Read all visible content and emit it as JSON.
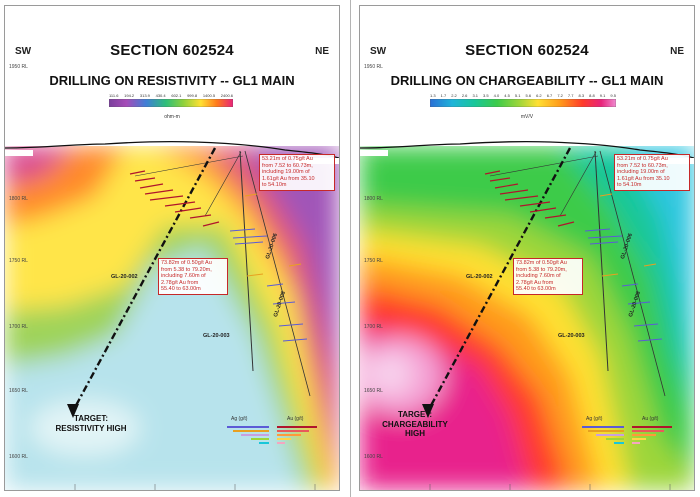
{
  "panels": [
    {
      "section": "SECTION 602524",
      "subtitle": "DRILLING ON RESISTIVITY -- GL1 MAIN",
      "left_dir": "SW",
      "right_dir": "NE",
      "rl_top": "1950 RL",
      "colorbar": {
        "unit": "ohm-m",
        "ticks": [
          "111.6",
          "194.2",
          "313.9",
          "430.4",
          "602.1",
          "999.8",
          "1400.5",
          "2400.6"
        ],
        "colors": [
          "#7b3f9c",
          "#a64cb8",
          "#3f7fd6",
          "#2fbf7a",
          "#8fd13c",
          "#ffe033",
          "#ff7a1a",
          "#e8247a"
        ]
      },
      "callout_upper": [
        "53.21m of 0.75g/t Au",
        "from 7.52 to 60.73m,",
        "including 19.00m of",
        "1.61g/t Au from 35.10",
        "to 54.10m"
      ],
      "callout_lower": [
        "73.82m of 0.50g/t Au",
        "from 5.38 to 79.20m,",
        "including 7.60m of",
        "2.78g/t Au from",
        "55.40 to 63.00m"
      ],
      "holes": [
        "GL-20-002",
        "GL-20-003",
        "GL-20-006",
        "GL-20-008"
      ],
      "target": [
        "TARGET:",
        "RESISTIVITY HIGH"
      ],
      "legend": {
        "ag": "Ag (g/t)",
        "au": "Au (g/t)"
      }
    },
    {
      "section": "SECTION 602524",
      "subtitle": "DRILLING ON CHARGEABILITY -- GL1 MAIN",
      "left_dir": "SW",
      "right_dir": "NE",
      "rl_top": "1950 RL",
      "colorbar": {
        "unit": "mV/V",
        "ticks": [
          "1.3",
          "1.7",
          "2.2",
          "2.6",
          "3.1",
          "3.5",
          "4.0",
          "4.5",
          "5.1",
          "5.6",
          "6.2",
          "6.7",
          "7.2",
          "7.7",
          "8.3",
          "8.8",
          "9.1",
          "9.5"
        ],
        "colors": [
          "#2a6fd6",
          "#1fb4d9",
          "#19c79a",
          "#3ccb4a",
          "#9ed63a",
          "#ffe033",
          "#ff9a1a",
          "#ff3b2a",
          "#e8247a",
          "#ef8ad0"
        ]
      },
      "callout_upper": [
        "53.21m of 0.75g/t Au",
        "from 7.52 to 60.73m,",
        "including 19.00m of",
        "1.61g/t Au from 35.10",
        "to 54.10m"
      ],
      "callout_lower": [
        "73.82m of 0.50g/t Au",
        "from 5.38 to 79.20m,",
        "including 7.60m of",
        "2.78g/t Au from",
        "55.40 to 63.00m"
      ],
      "holes": [
        "GL-20-002",
        "GL-20-003",
        "GL-20-006",
        "GL-20-008"
      ],
      "target": [
        "TARGET:",
        "CHARGEABILITY",
        "HIGH"
      ],
      "legend": {
        "ag": "Ag (g/t)",
        "au": "Au (g/t)"
      }
    }
  ],
  "rl_labels": [
    "1900 RL",
    "1850 RL",
    "1800 RL",
    "1750 RL",
    "1700 RL",
    "1650 RL",
    "1600 RL",
    "1550 RL"
  ]
}
